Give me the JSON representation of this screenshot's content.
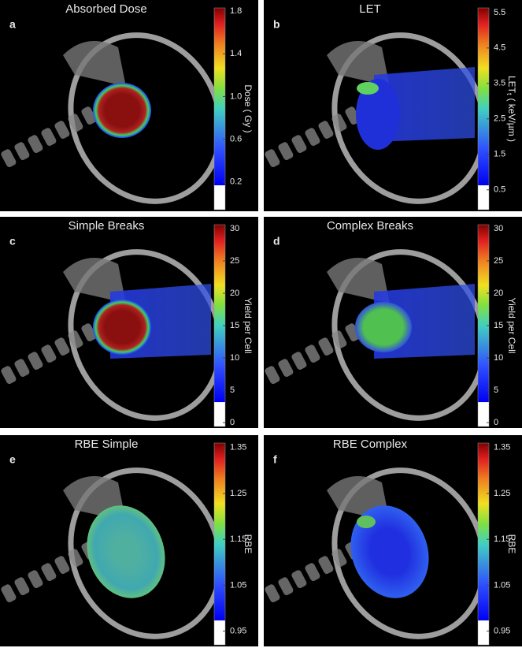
{
  "panels": [
    {
      "letter": "a",
      "title": "Absorbed Dose",
      "colorbar_label": "Dose ( Gy )",
      "ylim": [
        -0.06,
        1.83
      ],
      "yticks": [
        0.2,
        0.6,
        {
          "value": 1,
          "label": "1.0"
        },
        1.4,
        1.8
      ]
    },
    {
      "letter": "b",
      "title": "LET",
      "colorbar_label": "LET",
      "colorbar_label_sub": "t",
      "colorbar_label_unit": "( keV/µm )",
      "ylim": [
        -0.06,
        5.63
      ],
      "yticks": [
        0.5,
        1.5,
        2.5,
        3.5,
        4.5,
        5.5
      ]
    },
    {
      "letter": "c",
      "title": "Simple Breaks",
      "colorbar_label": "Yield per Cell",
      "ylim": [
        -0.6,
        30.6
      ],
      "yticks": [
        0,
        5,
        10,
        15,
        20,
        25,
        30
      ]
    },
    {
      "letter": "d",
      "title": "Complex Breaks",
      "colorbar_label": "Yield per Cell",
      "ylim": [
        -0.6,
        30.6
      ],
      "yticks": [
        0,
        5,
        10,
        15,
        20,
        25,
        30
      ]
    },
    {
      "letter": "e",
      "title": "RBE Simple",
      "colorbar_label": "RBE",
      "ylim": [
        0.92,
        1.36
      ],
      "yticks": [
        0.95,
        1.05,
        1.15,
        1.25,
        1.35
      ]
    },
    {
      "letter": "f",
      "title": "RBE Complex",
      "colorbar_label": "RBE",
      "ylim": [
        0.92,
        1.36
      ],
      "yticks": [
        0.95,
        1.05,
        1.15,
        1.25,
        1.35
      ]
    }
  ]
}
